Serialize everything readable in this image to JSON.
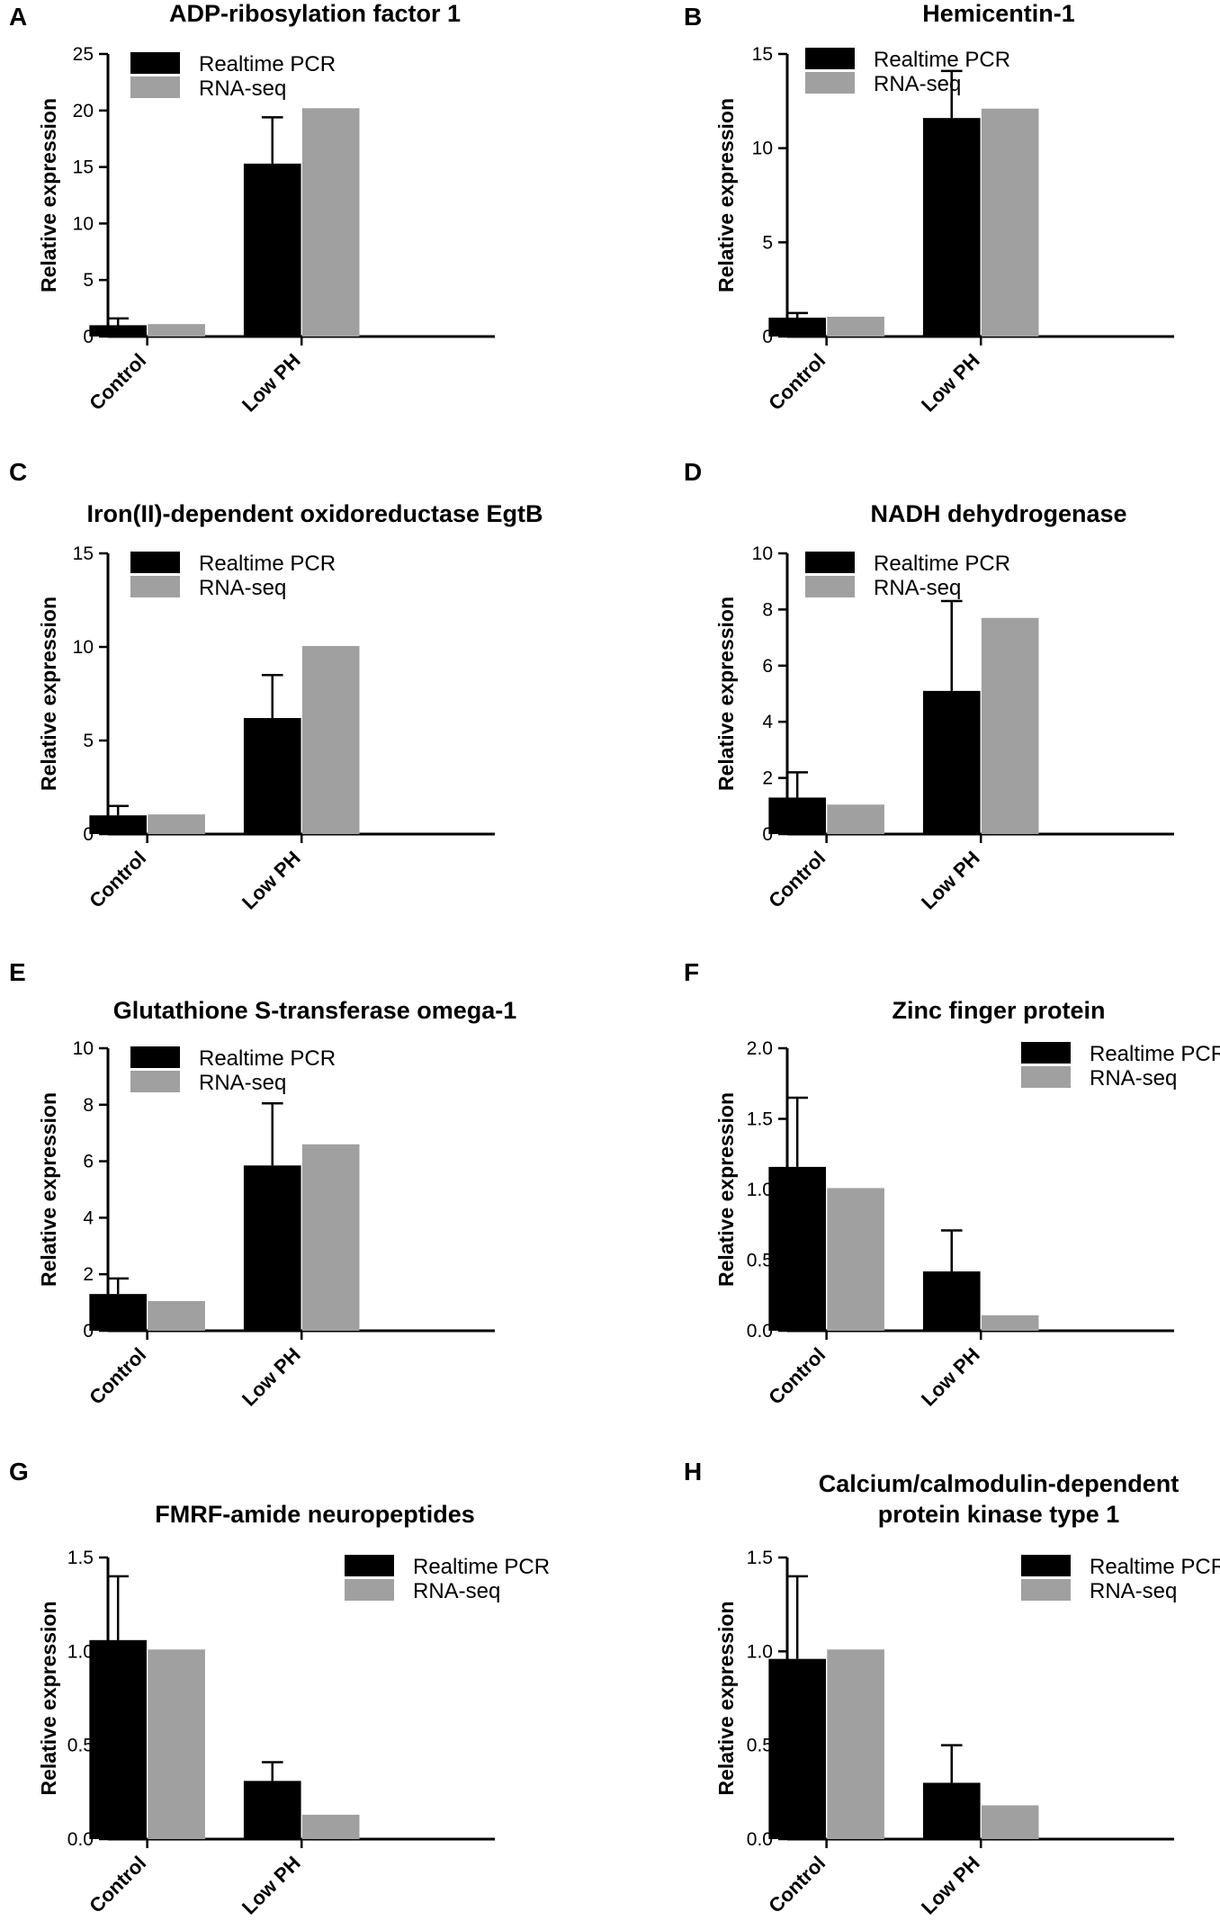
{
  "legend": {
    "pcr": "Realtime PCR",
    "rnaseq": "RNA-seq"
  },
  "colors": {
    "pcr": "#000000",
    "rnaseq": "#a0a0a0"
  },
  "chart_data": [
    {
      "type": "bar",
      "panel": "A",
      "title": [
        "ADP-ribosylation factor 1"
      ],
      "ylabel": "Relative expression",
      "categories": [
        "Control",
        "Low PH"
      ],
      "ylim": [
        0,
        25
      ],
      "ticks": [
        0,
        5,
        10,
        15,
        20,
        25
      ],
      "tick_labels": [
        "0",
        "5",
        "10",
        "15",
        "20",
        "25"
      ],
      "series": [
        {
          "name": "Realtime PCR",
          "values": [
            1.0,
            15.3
          ],
          "errors": [
            0.6,
            4.1
          ]
        },
        {
          "name": "RNA-seq",
          "values": [
            1.1,
            20.2
          ]
        }
      ],
      "legend_position": "top-left"
    },
    {
      "type": "bar",
      "panel": "B",
      "title": [
        "Hemicentin-1"
      ],
      "ylabel": "Relative expression",
      "categories": [
        "Control",
        "Low PH"
      ],
      "ylim": [
        0,
        15
      ],
      "ticks": [
        0,
        5,
        10,
        15
      ],
      "tick_labels": [
        "0",
        "5",
        "10",
        "15"
      ],
      "series": [
        {
          "name": "Realtime PCR",
          "values": [
            1.0,
            11.6
          ],
          "errors": [
            0.25,
            2.5
          ]
        },
        {
          "name": "RNA-seq",
          "values": [
            1.05,
            12.1
          ]
        }
      ],
      "legend_position": "top-left"
    },
    {
      "type": "bar",
      "panel": "C",
      "title": [
        "Iron(II)-dependent oxidoreductase EgtB"
      ],
      "ylabel": "Relative expression",
      "categories": [
        "Control",
        "Low PH"
      ],
      "ylim": [
        0,
        15
      ],
      "ticks": [
        0,
        5,
        10,
        15
      ],
      "tick_labels": [
        "0",
        "5",
        "10",
        "15"
      ],
      "series": [
        {
          "name": "Realtime PCR",
          "values": [
            1.0,
            6.2
          ],
          "errors": [
            0.5,
            2.3
          ]
        },
        {
          "name": "RNA-seq",
          "values": [
            1.05,
            10.05
          ]
        }
      ],
      "legend_position": "top-left"
    },
    {
      "type": "bar",
      "panel": "D",
      "title": [
        "NADH dehydrogenase"
      ],
      "ylabel": "Relative expression",
      "categories": [
        "Control",
        "Low PH"
      ],
      "ylim": [
        0,
        10
      ],
      "ticks": [
        0,
        2,
        4,
        6,
        8,
        10
      ],
      "tick_labels": [
        "0",
        "2",
        "4",
        "6",
        "8",
        "10"
      ],
      "series": [
        {
          "name": "Realtime PCR",
          "values": [
            1.3,
            5.1
          ],
          "errors": [
            0.9,
            3.2
          ]
        },
        {
          "name": "RNA-seq",
          "values": [
            1.05,
            7.7
          ]
        }
      ],
      "legend_position": "top-left"
    },
    {
      "type": "bar",
      "panel": "E",
      "title": [
        "Glutathione S-transferase omega-1"
      ],
      "ylabel": "Relative expression",
      "categories": [
        "Control",
        "Low PH"
      ],
      "ylim": [
        0,
        10
      ],
      "ticks": [
        0,
        2,
        4,
        6,
        8,
        10
      ],
      "tick_labels": [
        "0",
        "2",
        "4",
        "6",
        "8",
        "10"
      ],
      "series": [
        {
          "name": "Realtime PCR",
          "values": [
            1.3,
            5.85
          ],
          "errors": [
            0.55,
            2.2
          ]
        },
        {
          "name": "RNA-seq",
          "values": [
            1.05,
            6.6
          ]
        }
      ],
      "legend_position": "top-left"
    },
    {
      "type": "bar",
      "panel": "F",
      "title": [
        "Zinc finger protein"
      ],
      "ylabel": "Relative expression",
      "categories": [
        "Control",
        "Low PH"
      ],
      "ylim": [
        0,
        2.0
      ],
      "ticks": [
        0,
        0.5,
        1.0,
        1.5,
        2.0
      ],
      "tick_labels": [
        "0.0",
        "0.5",
        "1.0",
        "1.5",
        "2.0"
      ],
      "series": [
        {
          "name": "Realtime PCR",
          "values": [
            1.16,
            0.42
          ],
          "errors": [
            0.49,
            0.29
          ]
        },
        {
          "name": "RNA-seq",
          "values": [
            1.01,
            0.11
          ]
        }
      ],
      "legend_position": "top-right"
    },
    {
      "type": "bar",
      "panel": "G",
      "title": [
        "FMRF-amide neuropeptides"
      ],
      "ylabel": "Relative expression",
      "categories": [
        "Control",
        "Low PH"
      ],
      "ylim": [
        0,
        1.5
      ],
      "ticks": [
        0,
        0.5,
        1.0,
        1.5
      ],
      "tick_labels": [
        "0.0",
        "0.5",
        "1.0",
        "1.5"
      ],
      "series": [
        {
          "name": "Realtime PCR",
          "values": [
            1.06,
            0.31
          ],
          "errors": [
            0.34,
            0.1
          ]
        },
        {
          "name": "RNA-seq",
          "values": [
            1.01,
            0.13
          ]
        }
      ],
      "legend_position": "top-right"
    },
    {
      "type": "bar",
      "panel": "H",
      "title": [
        "Calcium/calmodulin-dependent",
        "protein kinase type 1"
      ],
      "ylabel": "Relative expression",
      "categories": [
        "Control",
        "Low PH"
      ],
      "ylim": [
        0,
        1.5
      ],
      "ticks": [
        0,
        0.5,
        1.0,
        1.5
      ],
      "tick_labels": [
        "0.0",
        "0.5",
        "1.0",
        "1.5"
      ],
      "series": [
        {
          "name": "Realtime PCR",
          "values": [
            0.96,
            0.3
          ],
          "errors": [
            0.44,
            0.2
          ]
        },
        {
          "name": "RNA-seq",
          "values": [
            1.01,
            0.18
          ]
        }
      ],
      "legend_position": "top-right"
    }
  ]
}
